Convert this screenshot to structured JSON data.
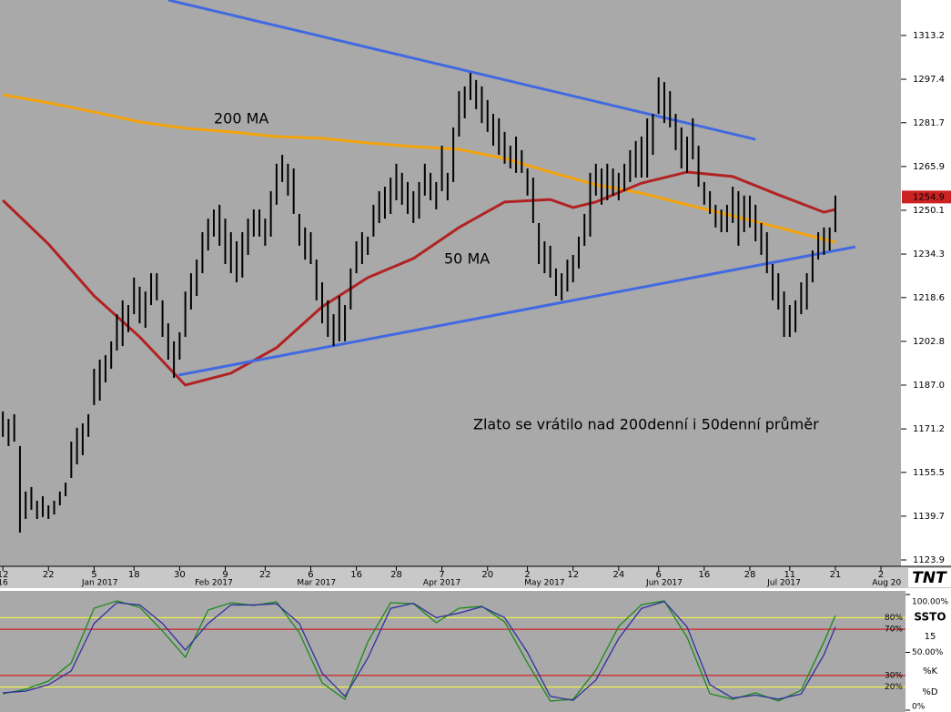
{
  "chart_data": [
    {
      "type": "ohlc",
      "categories": [
        "12",
        null,
        null,
        null,
        null,
        null,
        null,
        null,
        "22",
        null,
        null,
        null,
        null,
        null,
        null,
        null,
        "5",
        null,
        null,
        null,
        null,
        null,
        null,
        "18",
        null,
        null,
        null,
        null,
        null,
        null,
        null,
        "30",
        null,
        null,
        null,
        null,
        null,
        null,
        null,
        "9",
        null,
        null,
        null,
        null,
        null,
        null,
        "22",
        null,
        null,
        null,
        null,
        null,
        null,
        null,
        "6",
        null,
        null,
        null,
        null,
        null,
        null,
        null,
        "16",
        null,
        null,
        null,
        null,
        null,
        null,
        "28",
        null,
        null,
        null,
        null,
        null,
        null,
        null,
        "7",
        null,
        null,
        null,
        null,
        null,
        null,
        null,
        "20",
        null,
        null,
        null,
        null,
        null,
        null,
        "2",
        null,
        null,
        null,
        null,
        null,
        null,
        null,
        "12",
        null,
        null,
        null,
        null,
        null,
        null,
        null,
        "24",
        null,
        null,
        null,
        null,
        null,
        null,
        "6",
        null,
        null,
        null,
        null,
        null,
        null,
        null,
        "16",
        null,
        null,
        null,
        null,
        null,
        null,
        null,
        "28",
        null,
        null,
        null,
        null,
        null,
        null,
        "11",
        null,
        null,
        null,
        null,
        null,
        null,
        null,
        "21",
        null,
        null,
        null,
        null,
        null,
        null,
        null,
        "2",
        null,
        null,
        null
      ],
      "month_labels": [
        "16",
        null,
        null,
        null,
        null,
        null,
        null,
        null,
        null,
        null,
        null,
        null,
        null,
        null,
        null,
        null,
        null,
        "Jan 2017",
        null,
        null,
        null,
        null,
        null,
        null,
        null,
        null,
        null,
        null,
        null,
        null,
        null,
        null,
        null,
        null,
        null,
        null,
        null,
        "Feb 2017",
        null,
        null,
        null,
        null,
        null,
        null,
        null,
        null,
        null,
        null,
        null,
        null,
        null,
        null,
        null,
        null,
        null,
        "Mar 2017",
        null,
        null,
        null,
        null,
        null,
        null,
        null,
        null,
        null,
        null,
        null,
        null,
        null,
        null,
        null,
        null,
        null,
        null,
        null,
        null,
        null,
        "Apr 2017",
        null,
        null,
        null,
        null,
        null,
        null,
        null,
        null,
        null,
        null,
        null,
        null,
        null,
        null,
        null,
        null,
        null,
        "May 2017",
        null,
        null,
        null,
        null,
        null,
        null,
        null,
        null,
        null,
        null,
        null,
        null,
        null,
        null,
        null,
        null,
        null,
        null,
        null,
        null,
        "Jun 2017",
        null,
        null,
        null,
        null,
        null,
        null,
        null,
        null,
        null,
        null,
        null,
        null,
        null,
        null,
        null,
        null,
        null,
        null,
        null,
        null,
        "Jul 2017",
        null,
        null,
        null,
        null,
        null,
        null,
        null,
        null,
        null,
        null,
        null,
        null,
        null,
        null,
        null,
        null,
        null,
        "Aug 20",
        null,
        null
      ],
      "bars": {
        "color": "#000000",
        "high": [
          1177.5,
          1174.8,
          1176.5,
          1165.0,
          1148.6,
          1150.2,
          1145.3,
          1146.9,
          1143.6,
          1145.3,
          1148.6,
          1151.8,
          1166.6,
          1171.6,
          1173.2,
          1176.5,
          1192.9,
          1196.2,
          1197.8,
          1202.8,
          1212.6,
          1217.6,
          1215.9,
          1225.8,
          1222.5,
          1220.8,
          1227.4,
          1227.4,
          1217.6,
          1209.3,
          1202.8,
          1206.1,
          1220.8,
          1227.4,
          1232.3,
          1242.2,
          1247.1,
          1250.4,
          1252.1,
          1247.1,
          1242.2,
          1238.9,
          1242.2,
          1247.1,
          1250.4,
          1250.4,
          1247.1,
          1257.0,
          1266.9,
          1270.1,
          1266.9,
          1265.2,
          1248.8,
          1243.9,
          1242.2,
          1232.3,
          1224.1,
          1217.6,
          1212.6,
          1219.2,
          1215.9,
          1229.1,
          1238.9,
          1242.2,
          1240.6,
          1252.1,
          1257.0,
          1258.6,
          1261.9,
          1266.9,
          1263.6,
          1260.3,
          1257.0,
          1260.3,
          1266.9,
          1263.6,
          1260.3,
          1273.4,
          1263.6,
          1280.0,
          1293.1,
          1294.8,
          1299.7,
          1297.1,
          1294.8,
          1289.9,
          1284.9,
          1283.3,
          1278.4,
          1273.4,
          1276.7,
          1271.8,
          1265.2,
          1261.9,
          1245.5,
          1238.9,
          1237.3,
          1229.1,
          1227.4,
          1232.3,
          1234.0,
          1240.6,
          1248.8,
          1263.6,
          1266.9,
          1265.2,
          1266.9,
          1265.2,
          1263.6,
          1266.9,
          1271.8,
          1275.1,
          1276.7,
          1283.3,
          1284.9,
          1298.1,
          1296.4,
          1293.1,
          1284.9,
          1280.0,
          1276.7,
          1283.3,
          1273.4,
          1260.3,
          1257.0,
          1252.1,
          1250.4,
          1252.1,
          1258.6,
          1257.0,
          1255.4,
          1255.4,
          1252.1,
          1245.5,
          1242.2,
          1230.7,
          1227.4,
          1220.8,
          1215.9,
          1217.6,
          1224.1,
          1227.4,
          1235.6,
          1242.2,
          1243.9,
          1243.9,
          1255.4,
          null,
          null,
          null,
          null,
          null,
          null,
          null,
          null,
          null,
          null,
          null
        ],
        "low": [
          1168.3,
          1165.0,
          1166.6,
          1133.8,
          1138.7,
          1142.0,
          1138.7,
          1139.4,
          1138.7,
          1140.3,
          1143.6,
          1146.9,
          1153.5,
          1158.4,
          1161.7,
          1168.3,
          1179.8,
          1181.4,
          1188.0,
          1192.9,
          1199.5,
          1201.1,
          1206.1,
          1212.6,
          1209.3,
          1207.7,
          1215.9,
          1217.6,
          1204.4,
          1196.2,
          1189.6,
          1196.2,
          1204.4,
          1214.3,
          1219.2,
          1227.4,
          1235.6,
          1240.6,
          1237.3,
          1230.7,
          1227.4,
          1224.1,
          1225.8,
          1234.0,
          1240.6,
          1240.6,
          1237.3,
          1240.6,
          1252.1,
          1260.3,
          1255.4,
          1248.8,
          1237.3,
          1232.3,
          1230.7,
          1217.6,
          1209.3,
          1204.4,
          1201.1,
          1202.8,
          1202.8,
          1214.3,
          1227.4,
          1230.7,
          1234.0,
          1240.6,
          1245.5,
          1247.1,
          1248.8,
          1253.7,
          1252.1,
          1248.8,
          1245.5,
          1247.1,
          1255.4,
          1253.7,
          1250.4,
          1257.0,
          1253.7,
          1260.3,
          1276.7,
          1283.3,
          1289.9,
          1286.6,
          1281.6,
          1278.4,
          1273.4,
          1270.1,
          1266.9,
          1265.2,
          1263.6,
          1263.6,
          1255.4,
          1245.5,
          1230.7,
          1227.4,
          1225.8,
          1219.2,
          1217.6,
          1220.8,
          1224.1,
          1229.1,
          1237.3,
          1240.6,
          1255.4,
          1252.1,
          1253.7,
          1255.4,
          1253.7,
          1257.0,
          1260.3,
          1261.9,
          1261.9,
          1261.9,
          1270.1,
          1284.9,
          1281.6,
          1280.0,
          1271.8,
          1265.2,
          1263.6,
          1268.5,
          1258.6,
          1252.1,
          1248.8,
          1243.9,
          1242.2,
          1242.2,
          1245.5,
          1237.3,
          1242.2,
          1243.9,
          1238.9,
          1234.0,
          1227.4,
          1217.6,
          1214.3,
          1204.4,
          1204.4,
          1206.1,
          1212.6,
          1214.3,
          1224.1,
          1232.3,
          1234.0,
          1235.6,
          1242.2,
          null,
          null,
          null,
          null,
          null,
          null,
          null,
          null,
          null,
          null,
          null
        ]
      },
      "overlays": [
        {
          "label": "200 MA",
          "color": "#f5a30a",
          "x": [
            0,
            8,
            16,
            24,
            32,
            40,
            48,
            56,
            64,
            72,
            80,
            88,
            96,
            104,
            112,
            120,
            128,
            136,
            144,
            146
          ],
          "values": [
            1291.8,
            1288.9,
            1285.6,
            1282.0,
            1279.7,
            1278.4,
            1276.7,
            1276.1,
            1274.4,
            1273.1,
            1272.1,
            1268.8,
            1263.9,
            1259.3,
            1256.3,
            1252.1,
            1248.1,
            1243.9,
            1239.6,
            1238.6
          ]
        },
        {
          "label": "50 MA",
          "color": "#b22222",
          "x": [
            0,
            8,
            16,
            24,
            32,
            40,
            48,
            56,
            64,
            72,
            80,
            88,
            96,
            100,
            104,
            112,
            120,
            128,
            136,
            144,
            146
          ],
          "values": [
            1253.7,
            1237.9,
            1219.2,
            1204.4,
            1187.0,
            1191.3,
            1200.5,
            1215.3,
            1225.8,
            1232.7,
            1243.9,
            1253.1,
            1254.0,
            1251.1,
            1253.1,
            1259.9,
            1263.9,
            1262.3,
            1255.7,
            1249.4,
            1250.4
          ]
        }
      ],
      "trendlines": [
        {
          "color": "#4169e1",
          "x": [
            29.0,
            132.0
          ],
          "values": [
            1326.0,
            1275.7
          ]
        },
        {
          "color": "#4169e1",
          "x": [
            30.8,
            149.5
          ],
          "values": [
            1190.6,
            1236.9
          ]
        }
      ],
      "annotation": "Zlato se vrátilo nad 200denní i 50denní průměr",
      "last_price": 1254.9,
      "last_price_color": "#cc2222",
      "ylim": [
        1121.6,
        1326.0
      ],
      "yticks": [
        1123.9,
        1139.7,
        1155.5,
        1171.2,
        {
          "value": 1187.0,
          "label": "1187.0"
        },
        1202.8,
        1218.6,
        1234.3,
        1250.1,
        1265.9,
        1281.7,
        1297.4,
        1313.2
      ],
      "logo": "TNT"
    },
    {
      "type": "line",
      "title": "SSTO",
      "subtitle": "15",
      "x": [
        0,
        4,
        8,
        12,
        16,
        20,
        24,
        28,
        32,
        36,
        40,
        44,
        48,
        52,
        56,
        60,
        64,
        68,
        72,
        76,
        80,
        84,
        88,
        92,
        96,
        100,
        104,
        108,
        112,
        116,
        120,
        124,
        128,
        132,
        136,
        140,
        144,
        146
      ],
      "series": [
        {
          "name": "%K",
          "color": "#1a8a1a",
          "values": [
            14.2,
            18.1,
            25.2,
            40.9,
            88.2,
            94.5,
            89.0,
            68.5,
            45.7,
            86.6,
            92.9,
            90.6,
            93.7,
            66.9,
            23.6,
            9.4,
            59.1,
            92.9,
            92.1,
            75.6,
            88.2,
            89.8,
            76.4,
            40.9,
            7.9,
            9.4,
            34.6,
            72.4,
            91.3,
            94.5,
            63.0,
            14.2,
            9.4,
            15.0,
            7.9,
            17.3,
            59.1,
            81.9
          ]
        },
        {
          "name": "%D",
          "color": "#3030a0",
          "values": [
            15.0,
            16.5,
            22.0,
            34.0,
            75.0,
            93.0,
            91.0,
            75.0,
            52.0,
            75.0,
            91.0,
            91.0,
            92.0,
            75.0,
            32.0,
            12.0,
            45.0,
            88.0,
            92.5,
            80.0,
            84.0,
            89.5,
            80.0,
            50.0,
            12.0,
            8.5,
            26.0,
            62.0,
            88.0,
            94.0,
            72.0,
            22.0,
            10.5,
            13.0,
            9.5,
            14.0,
            48.0,
            72.0
          ]
        }
      ],
      "levels": [
        {
          "value": 80,
          "label": "80%",
          "color": "#ffff33"
        },
        {
          "value": 70,
          "label": "70%",
          "color": "#dd0000"
        },
        {
          "value": 30,
          "label": "30%",
          "color": "#dd0000"
        },
        {
          "value": 20,
          "label": "20%",
          "color": "#ffff33"
        }
      ],
      "ylim": [
        0,
        100
      ],
      "yticks": [
        {
          "value": 100,
          "label": "100.00%"
        },
        {
          "value": 50,
          "label": "50.00%"
        },
        {
          "value": 0,
          "label": "0%"
        }
      ]
    }
  ]
}
